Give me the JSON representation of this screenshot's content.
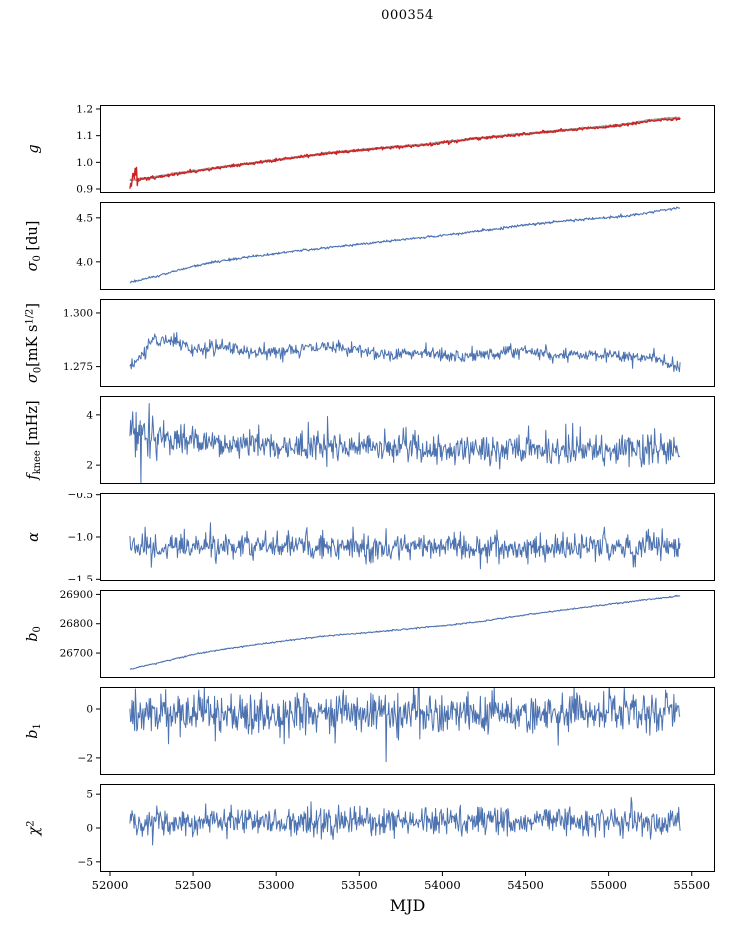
{
  "chart_data": {
    "type": "line",
    "title": "000354",
    "xlabel": "MJD",
    "legend": "none",
    "grid": false,
    "xlim": [
      51940,
      55640
    ],
    "xticks": [
      52000,
      52500,
      53000,
      53500,
      54000,
      54500,
      55000,
      55500
    ],
    "xtick_labels": [
      "52000",
      "52500",
      "53000",
      "53500",
      "54000",
      "54500",
      "55000",
      "55500"
    ],
    "colors": {
      "blue": "#4c72b0",
      "red": "#cf2121",
      "gray": "#9b9b9b",
      "axis": "#000000"
    },
    "panels": [
      {
        "name": "g",
        "ylabel": [
          {
            "t": "g",
            "s": "it"
          }
        ],
        "ylim": [
          0.885,
          1.215
        ],
        "yticks": [
          0.9,
          1.0,
          1.1,
          1.2
        ],
        "ytick_labels": [
          "0.9",
          "1.0",
          "1.1",
          "1.2"
        ],
        "xdata": [
          52120,
          55430
        ],
        "series": [
          {
            "color": "#9b9b9b",
            "width": 2.2,
            "seed": 7,
            "n": 600,
            "noise": 0.0012,
            "trend": [
              [
                52120,
                0.933
              ],
              [
                52250,
                0.942
              ],
              [
                52400,
                0.958
              ],
              [
                52700,
                0.985
              ],
              [
                53000,
                1.009
              ],
              [
                53300,
                1.034
              ],
              [
                53600,
                1.052
              ],
              [
                53900,
                1.067
              ],
              [
                54200,
                1.09
              ],
              [
                54500,
                1.107
              ],
              [
                54800,
                1.125
              ],
              [
                55000,
                1.135
              ],
              [
                55150,
                1.147
              ],
              [
                55250,
                1.158
              ],
              [
                55350,
                1.164
              ],
              [
                55430,
                1.168
              ]
            ]
          },
          {
            "color": "#cf2121",
            "width": 1.4,
            "seed": 8,
            "n": 750,
            "noise": 0.0028,
            "blob": {
              "x_end": 52170,
              "amp": 0.02
            },
            "trend": [
              [
                52120,
                0.932
              ],
              [
                52160,
                0.936
              ],
              [
                52250,
                0.941
              ],
              [
                52400,
                0.957
              ],
              [
                52550,
                0.97
              ],
              [
                52700,
                0.984
              ],
              [
                52850,
                0.996
              ],
              [
                53000,
                1.008
              ],
              [
                53150,
                1.022
              ],
              [
                53300,
                1.033
              ],
              [
                53450,
                1.042
              ],
              [
                53600,
                1.051
              ],
              [
                53750,
                1.058
              ],
              [
                53900,
                1.066
              ],
              [
                54050,
                1.077
              ],
              [
                54200,
                1.089
              ],
              [
                54350,
                1.098
              ],
              [
                54500,
                1.106
              ],
              [
                54650,
                1.115
              ],
              [
                54800,
                1.124
              ],
              [
                54950,
                1.131
              ],
              [
                55100,
                1.141
              ],
              [
                55200,
                1.15
              ],
              [
                55300,
                1.157
              ],
              [
                55430,
                1.164
              ]
            ]
          }
        ]
      },
      {
        "name": "sigma0_du",
        "ylabel": [
          {
            "t": "σ",
            "s": "it"
          },
          {
            "t": "0",
            "s": "sub"
          },
          {
            "t": " [du]"
          }
        ],
        "ylim": [
          3.68,
          4.68
        ],
        "yticks": [
          4.0,
          4.5
        ],
        "ytick_labels": [
          "4.0",
          "4.5"
        ],
        "xdata": [
          52120,
          55430
        ],
        "series": [
          {
            "color": "#4c72b0",
            "width": 1.1,
            "seed": 21,
            "n": 800,
            "noise": 0.007,
            "trend": [
              [
                52120,
                3.77
              ],
              [
                52250,
                3.82
              ],
              [
                52400,
                3.9
              ],
              [
                52550,
                3.97
              ],
              [
                52700,
                4.02
              ],
              [
                52900,
                4.07
              ],
              [
                53100,
                4.12
              ],
              [
                53300,
                4.16
              ],
              [
                53500,
                4.2
              ],
              [
                53700,
                4.24
              ],
              [
                53900,
                4.28
              ],
              [
                54100,
                4.32
              ],
              [
                54300,
                4.37
              ],
              [
                54500,
                4.42
              ],
              [
                54700,
                4.46
              ],
              [
                54900,
                4.49
              ],
              [
                55100,
                4.52
              ],
              [
                55250,
                4.56
              ],
              [
                55430,
                4.62
              ]
            ]
          }
        ]
      },
      {
        "name": "sigma0_mks",
        "ylabel": [
          {
            "t": "σ",
            "s": "it"
          },
          {
            "t": "0",
            "s": "sub"
          },
          {
            "t": "[mK s"
          },
          {
            "t": "1/2",
            "s": "sup"
          },
          {
            "t": "]"
          }
        ],
        "ylim": [
          1.2655,
          1.3065
        ],
        "yticks": [
          1.275,
          1.3
        ],
        "ytick_labels": [
          "1.275",
          "1.300"
        ],
        "xdata": [
          52120,
          55430
        ],
        "series": [
          {
            "color": "#4c72b0",
            "width": 1.0,
            "seed": 31,
            "n": 800,
            "noise": 0.0016,
            "trend": [
              [
                52120,
                1.2745
              ],
              [
                52180,
                1.279
              ],
              [
                52250,
                1.287
              ],
              [
                52350,
                1.288
              ],
              [
                52500,
                1.283
              ],
              [
                52700,
                1.284
              ],
              [
                52900,
                1.281
              ],
              [
                53100,
                1.283
              ],
              [
                53300,
                1.284
              ],
              [
                53500,
                1.283
              ],
              [
                53700,
                1.2805
              ],
              [
                53900,
                1.282
              ],
              [
                54100,
                1.2795
              ],
              [
                54300,
                1.281
              ],
              [
                54500,
                1.2825
              ],
              [
                54700,
                1.28
              ],
              [
                54900,
                1.2815
              ],
              [
                55100,
                1.279
              ],
              [
                55250,
                1.28
              ],
              [
                55350,
                1.276
              ],
              [
                55430,
                1.2755
              ]
            ]
          }
        ]
      },
      {
        "name": "fknee",
        "ylabel": [
          {
            "t": "f",
            "s": "it"
          },
          {
            "t": "knee",
            "s": "sub"
          },
          {
            "t": " [mHz]"
          }
        ],
        "ylim": [
          1.25,
          4.75
        ],
        "yticks": [
          2,
          4
        ],
        "ytick_labels": [
          "2",
          "4"
        ],
        "xdata": [
          52120,
          55430
        ],
        "series": [
          {
            "color": "#4c72b0",
            "width": 1.0,
            "seed": 41,
            "n": 800,
            "noise": 0.27,
            "blob": {
              "x_end": 52300,
              "amp": 0.25
            },
            "spike_prob": 0.05,
            "spike_amp": 1.0,
            "spike_dir": "up",
            "trend": [
              [
                52120,
                3.45
              ],
              [
                52200,
                3.15
              ],
              [
                52350,
                3.0
              ],
              [
                52600,
                2.85
              ],
              [
                52900,
                2.78
              ],
              [
                53300,
                2.7
              ],
              [
                53800,
                2.62
              ],
              [
                54300,
                2.6
              ],
              [
                54800,
                2.58
              ],
              [
                55430,
                2.56
              ]
            ]
          }
        ]
      },
      {
        "name": "alpha",
        "ylabel": [
          {
            "t": "α",
            "s": "it"
          }
        ],
        "ylim": [
          -1.52,
          -0.48
        ],
        "yticks": [
          -1.5,
          -1.0,
          -0.5
        ],
        "ytick_labels": [
          "−1.5",
          "−1.0",
          "−0.5"
        ],
        "xdata": [
          52120,
          55430
        ],
        "series": [
          {
            "color": "#4c72b0",
            "width": 1.0,
            "seed": 51,
            "n": 800,
            "noise": 0.075,
            "spike_prob": 0.02,
            "spike_amp": 0.25,
            "spike_dir": "both",
            "trend": [
              [
                52120,
                -1.12
              ],
              [
                55430,
                -1.12
              ]
            ]
          }
        ]
      },
      {
        "name": "b0",
        "ylabel": [
          {
            "t": "b",
            "s": "it"
          },
          {
            "t": "0",
            "s": "sub"
          }
        ],
        "ylim": [
          26615,
          26915
        ],
        "yticks": [
          26700,
          26800,
          26900
        ],
        "ytick_labels": [
          "26700",
          "26800",
          "26900"
        ],
        "xdata": [
          52120,
          55430
        ],
        "series": [
          {
            "color": "#4c72b0",
            "width": 1.1,
            "seed": 61,
            "n": 700,
            "noise": 1.2,
            "trend": [
              [
                52120,
                26645
              ],
              [
                52300,
                26668
              ],
              [
                52500,
                26695
              ],
              [
                52700,
                26715
              ],
              [
                52900,
                26730
              ],
              [
                53100,
                26745
              ],
              [
                53300,
                26758
              ],
              [
                53600,
                26772
              ],
              [
                53900,
                26788
              ],
              [
                54200,
                26805
              ],
              [
                54500,
                26830
              ],
              [
                54800,
                26852
              ],
              [
                55000,
                26866
              ],
              [
                55200,
                26880
              ],
              [
                55430,
                26895
              ]
            ]
          }
        ]
      },
      {
        "name": "b1",
        "ylabel": [
          {
            "t": "b",
            "s": "it"
          },
          {
            "t": "1",
            "s": "sub"
          }
        ],
        "ylim": [
          -2.7,
          0.9
        ],
        "yticks": [
          -2,
          0
        ],
        "ytick_labels": [
          "−2",
          "0"
        ],
        "xdata": [
          52120,
          55430
        ],
        "series": [
          {
            "color": "#4c72b0",
            "width": 1.0,
            "seed": 71,
            "n": 800,
            "noise": 0.42,
            "spike_prob": 0.03,
            "spike_amp": 0.6,
            "spike_dir": "both",
            "points_override": [
              [
                53660,
                -2.15
              ]
            ],
            "trend": [
              [
                52120,
                -0.15
              ],
              [
                55430,
                -0.18
              ]
            ]
          }
        ]
      },
      {
        "name": "chi2",
        "ylabel": [
          {
            "t": "χ",
            "s": "it"
          },
          {
            "t": "2",
            "s": "sup"
          }
        ],
        "ylim": [
          -6.5,
          6.5
        ],
        "yticks": [
          -5,
          0,
          5
        ],
        "ytick_labels": [
          "−5",
          "0",
          "5"
        ],
        "xdata": [
          52120,
          55430
        ],
        "series": [
          {
            "color": "#4c72b0",
            "width": 1.0,
            "seed": 81,
            "n": 800,
            "noise": 1.05,
            "spike_prob": 0.05,
            "spike_amp": 1.5,
            "spike_dir": "both",
            "trend": [
              [
                52120,
                0.9
              ],
              [
                55430,
                1.1
              ]
            ]
          }
        ]
      }
    ]
  }
}
